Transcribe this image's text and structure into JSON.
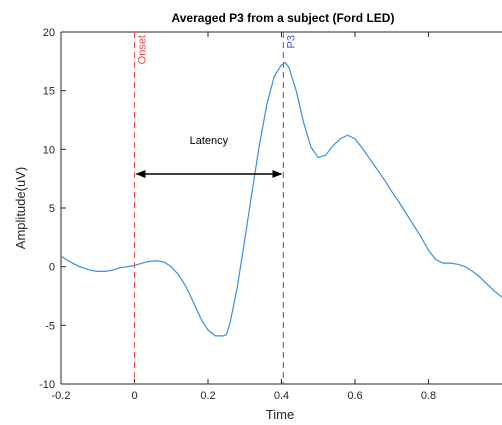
{
  "chart_data": {
    "type": "line",
    "title": "Averaged P3 from a subject (Ford LED)",
    "xlabel": "Time",
    "ylabel": "Amplitude(uV)",
    "xlim": [
      -0.2,
      1.0
    ],
    "ylim": [
      -10,
      20
    ],
    "xticks": [
      -0.2,
      0,
      0.2,
      0.4,
      0.6,
      0.8
    ],
    "xtick_labels": [
      "-0.2",
      "0",
      "0.2",
      "0.4",
      "0.6",
      "0.8"
    ],
    "yticks": [
      -10,
      -5,
      0,
      5,
      10,
      15,
      20
    ],
    "ytick_labels": [
      "-10",
      "-5",
      "0",
      "5",
      "10",
      "15",
      "20"
    ],
    "grid": false,
    "series": [
      {
        "color": "#3b8fd9",
        "x": [
          -0.2,
          -0.18,
          -0.15,
          -0.12,
          -0.1,
          -0.08,
          -0.06,
          -0.04,
          -0.02,
          0.0,
          0.02,
          0.04,
          0.06,
          0.08,
          0.1,
          0.12,
          0.14,
          0.16,
          0.18,
          0.2,
          0.22,
          0.24,
          0.25,
          0.26,
          0.28,
          0.3,
          0.32,
          0.34,
          0.36,
          0.38,
          0.4,
          0.41,
          0.42,
          0.44,
          0.46,
          0.48,
          0.5,
          0.52,
          0.54,
          0.56,
          0.58,
          0.6,
          0.62,
          0.64,
          0.66,
          0.68,
          0.7,
          0.72,
          0.74,
          0.76,
          0.78,
          0.8,
          0.82,
          0.84,
          0.86,
          0.88,
          0.9,
          0.92,
          0.94,
          0.96,
          0.98,
          1.0
        ],
        "y": [
          0.9,
          0.5,
          0.0,
          -0.3,
          -0.4,
          -0.4,
          -0.3,
          -0.1,
          0.0,
          0.1,
          0.3,
          0.45,
          0.5,
          0.4,
          0.0,
          -0.7,
          -1.7,
          -3.0,
          -4.4,
          -5.4,
          -5.9,
          -5.9,
          -5.8,
          -4.8,
          -1.7,
          2.3,
          6.4,
          10.4,
          13.8,
          16.2,
          17.2,
          17.4,
          17.0,
          15.0,
          12.3,
          10.2,
          9.3,
          9.5,
          10.3,
          10.9,
          11.2,
          10.9,
          10.1,
          9.2,
          8.3,
          7.4,
          6.4,
          5.5,
          4.5,
          3.5,
          2.5,
          1.4,
          0.6,
          0.3,
          0.3,
          0.2,
          0.0,
          -0.4,
          -0.9,
          -1.5,
          -2.1,
          -2.6
        ]
      }
    ],
    "annotations": {
      "onset": {
        "x": 0.0,
        "label": "Onset",
        "color": "#e84a4a"
      },
      "p3": {
        "x": 0.405,
        "label": "P3",
        "color": "#4a4ae8"
      },
      "latency": {
        "label": "Latency",
        "y": 7.9,
        "x_from": 0.0,
        "x_to": 0.405
      }
    }
  }
}
